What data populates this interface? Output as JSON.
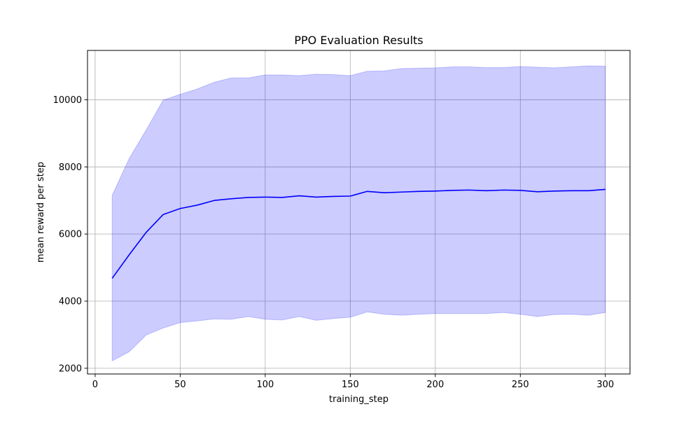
{
  "chart_data": {
    "type": "line",
    "title": "PPO Evaluation Results",
    "xlabel": "training_step",
    "ylabel": "mean reward per step",
    "xlim": [
      -4.5,
      314.5
    ],
    "ylim": [
      1830,
      11470
    ],
    "x_ticks": [
      0,
      50,
      100,
      150,
      200,
      250,
      300
    ],
    "y_ticks": [
      2000,
      4000,
      6000,
      8000,
      10000
    ],
    "grid": true,
    "legend": "none",
    "series": [
      {
        "color": "#0000ff",
        "band_color": "#0000ff",
        "band_opacity": 0.2,
        "x": [
          10,
          20,
          30,
          40,
          50,
          60,
          70,
          80,
          90,
          100,
          110,
          120,
          130,
          140,
          150,
          160,
          170,
          180,
          190,
          200,
          210,
          220,
          230,
          240,
          250,
          260,
          270,
          280,
          290,
          300
        ],
        "mean": [
          4680,
          5380,
          6050,
          6580,
          6760,
          6860,
          7000,
          7050,
          7090,
          7100,
          7090,
          7140,
          7100,
          7120,
          7130,
          7270,
          7230,
          7250,
          7270,
          7280,
          7300,
          7310,
          7290,
          7310,
          7300,
          7260,
          7280,
          7290,
          7290,
          7330
        ],
        "upper": [
          7150,
          8250,
          9100,
          9990,
          10160,
          10320,
          10520,
          10650,
          10650,
          10740,
          10740,
          10720,
          10760,
          10750,
          10720,
          10850,
          10860,
          10930,
          10940,
          10950,
          10980,
          10980,
          10960,
          10960,
          10990,
          10970,
          10950,
          10980,
          11010,
          11000
        ],
        "lower": [
          2220,
          2490,
          2990,
          3200,
          3360,
          3410,
          3470,
          3460,
          3540,
          3460,
          3440,
          3540,
          3430,
          3480,
          3520,
          3680,
          3610,
          3580,
          3610,
          3630,
          3630,
          3630,
          3630,
          3660,
          3610,
          3540,
          3600,
          3610,
          3580,
          3660
        ]
      }
    ]
  }
}
